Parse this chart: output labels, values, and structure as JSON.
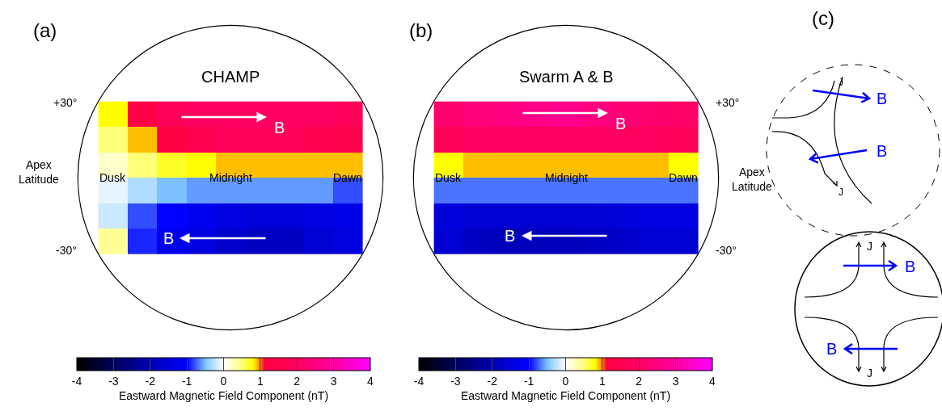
{
  "chart_data": [
    {
      "type": "heatmap",
      "title": "CHAMP",
      "categories": [
        "Dusk",
        null,
        null,
        null,
        "Midnight",
        null,
        null,
        null,
        "Dawn"
      ],
      "y_categories": [
        null,
        null,
        null,
        null,
        null,
        null
      ],
      "cells": [
        [
          0.8,
          1.3,
          1.8,
          2.0,
          2.0,
          2.0,
          2.0,
          2.0,
          1.8
        ],
        [
          0.5,
          0.9,
          1.2,
          1.6,
          1.8,
          1.8,
          1.8,
          1.6,
          1.4
        ],
        [
          0.2,
          0.5,
          0.7,
          0.8,
          0.9,
          0.9,
          0.9,
          0.9,
          0.9
        ],
        [
          -0.1,
          -0.3,
          -0.5,
          -0.6,
          -0.6,
          -0.6,
          -0.6,
          -0.6,
          -0.8
        ],
        [
          -0.2,
          -0.8,
          -1.0,
          -1.2,
          -1.4,
          -1.5,
          -1.5,
          -1.4,
          -1.3
        ],
        [
          0.4,
          -0.9,
          -1.2,
          -1.4,
          -1.7,
          -1.8,
          -1.8,
          -1.6,
          -1.4
        ]
      ],
      "clim": [
        -4,
        4
      ],
      "cticks": [
        -4,
        -3,
        -2,
        -1,
        0,
        1,
        2,
        3,
        4
      ],
      "clabel": "Eastward Magnetic Field Component (nT)",
      "annotations": [
        "(a)",
        "+30°",
        "-30°",
        "Apex Latitude",
        "B",
        "B"
      ]
    },
    {
      "type": "heatmap",
      "title": "Swarm A & B",
      "categories": [
        "Dusk",
        null,
        null,
        null,
        "Midnight",
        null,
        null,
        null,
        "Dawn"
      ],
      "y_categories": [
        null,
        null,
        null,
        null,
        null,
        null
      ],
      "cells": [
        [
          2.2,
          2.4,
          2.5,
          2.6,
          2.7,
          2.5,
          2.3,
          2.2,
          2.1
        ],
        [
          1.8,
          1.9,
          2.0,
          2.0,
          2.0,
          2.0,
          1.9,
          1.9,
          1.8
        ],
        [
          0.8,
          0.9,
          0.9,
          0.9,
          0.9,
          0.9,
          0.9,
          0.9,
          0.8
        ],
        [
          -0.7,
          -0.7,
          -0.7,
          -0.7,
          -0.7,
          -0.7,
          -0.7,
          -0.7,
          -0.7
        ],
        [
          -1.5,
          -1.6,
          -1.6,
          -1.6,
          -1.6,
          -1.6,
          -1.5,
          -1.4,
          -1.4
        ],
        [
          -1.6,
          -1.8,
          -1.9,
          -1.9,
          -1.9,
          -1.8,
          -1.7,
          -1.6,
          -1.6
        ]
      ],
      "clim": [
        -4,
        4
      ],
      "cticks": [
        -4,
        -3,
        -2,
        -1,
        0,
        1,
        2,
        3,
        4
      ],
      "clabel": "Eastward Magnetic Field Component (nT)",
      "annotations": [
        "(b)",
        "+30°",
        "-30°",
        "Apex Latitude",
        "B",
        "B"
      ]
    },
    {
      "type": "other",
      "annotations": [
        "(c)",
        "B",
        "B",
        "J",
        "J",
        "J",
        "J",
        "B",
        "B"
      ]
    }
  ]
}
